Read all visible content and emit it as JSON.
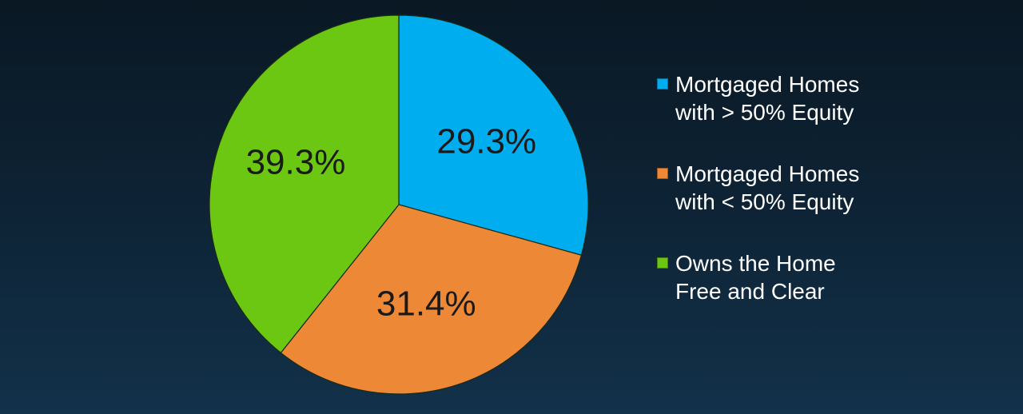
{
  "chart_data": {
    "type": "pie",
    "title": "",
    "legend_position": "right",
    "slices": [
      {
        "label": "Mortgaged Homes\nwith > 50% Equity",
        "value": 29.3,
        "display": "29.3%",
        "color": "#00aeef"
      },
      {
        "label": "Mortgaged Homes\nwith < 50% Equity",
        "value": 31.4,
        "display": "31.4%",
        "color": "#ed8936"
      },
      {
        "label": "Owns the Home\nFree and Clear",
        "value": 39.3,
        "display": "39.3%",
        "color": "#6cc712"
      }
    ]
  }
}
